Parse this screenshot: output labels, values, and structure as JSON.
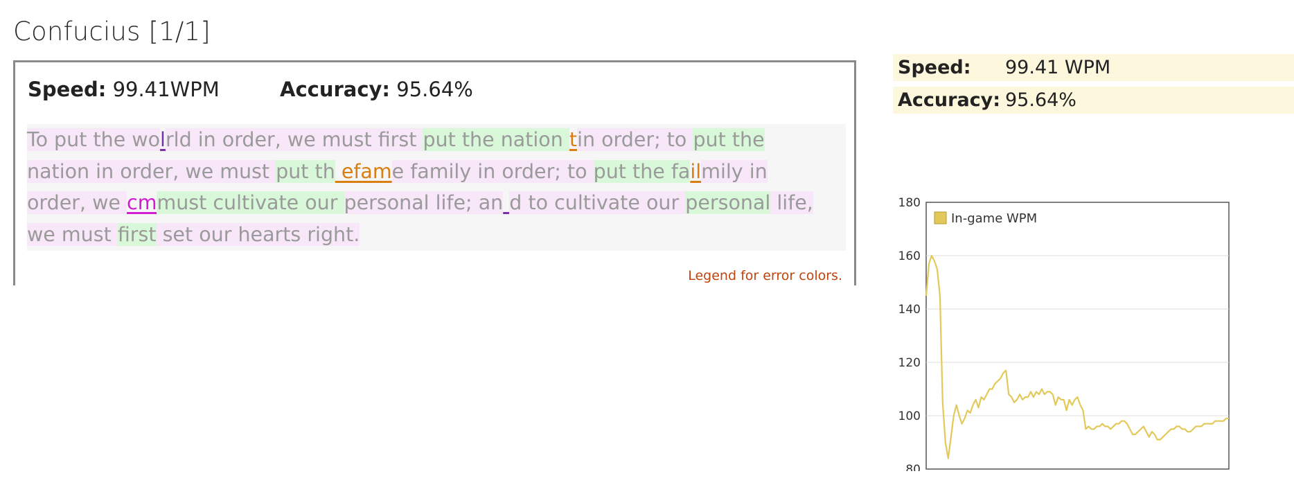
{
  "page_title": "Confucius [1/1]",
  "result": {
    "speed_label": "Speed:",
    "speed_value": "99.41WPM",
    "accuracy_label": "Accuracy:",
    "accuracy_value": "95.64%"
  },
  "passage_lines": [
    [
      {
        "t": "To put the ",
        "c": "p"
      },
      {
        "t": "wo",
        "c": "p"
      },
      {
        "t": "l",
        "c": "e-purple"
      },
      {
        "t": "rld in order, we must first ",
        "c": "p"
      },
      {
        "t": "put the nation ",
        "c": "g"
      },
      {
        "t": "t",
        "c": "e-orange"
      },
      {
        "t": "in order; to ",
        "c": "p"
      },
      {
        "t": "put the",
        "c": "g"
      }
    ],
    [
      {
        "t": "nation in order, we must ",
        "c": "p"
      },
      {
        "t": "put th",
        "c": "g"
      },
      {
        "t": " efam",
        "c": "e-orange"
      },
      {
        "t": "e family in order; to ",
        "c": "p"
      },
      {
        "t": "put the fa",
        "c": "g"
      },
      {
        "t": "il",
        "c": "e-orange"
      },
      {
        "t": "mily in",
        "c": "p"
      }
    ],
    [
      {
        "t": "order, we ",
        "c": "p"
      },
      {
        "t": "cm",
        "c": "e-magenta"
      },
      {
        "t": "must cultivate our ",
        "c": "g"
      },
      {
        "t": "personal life; an",
        "c": "p"
      },
      {
        "t": " ",
        "c": "e-purple"
      },
      {
        "t": "d to cultivate our ",
        "c": "p"
      },
      {
        "t": "personal",
        "c": "g"
      },
      {
        "t": " life,",
        "c": "p"
      }
    ],
    [
      {
        "t": "we must ",
        "c": "p"
      },
      {
        "t": "first",
        "c": "g"
      },
      {
        "t": " set our hearts right.",
        "c": "p"
      }
    ]
  ],
  "legend_link": "Legend for error colors.",
  "side_stats": [
    {
      "label": "Speed:",
      "value": "99.41 WPM"
    },
    {
      "label": "Accuracy:",
      "value": "95.64%"
    }
  ],
  "chart_data": {
    "type": "line",
    "series": [
      {
        "name": "In-game WPM",
        "color": "#e3c95a",
        "values": [
          145,
          157,
          160,
          158,
          155,
          145,
          105,
          90,
          84,
          92,
          100,
          104,
          100,
          97,
          99,
          102,
          101,
          104,
          106,
          103,
          107,
          106,
          108,
          110,
          110,
          112,
          113,
          114,
          116,
          117,
          108,
          107,
          105,
          106,
          108,
          106,
          107,
          107,
          109,
          107,
          109,
          108,
          110,
          108,
          109,
          109,
          108,
          104,
          107,
          106,
          106,
          102,
          106,
          104,
          106,
          107,
          104,
          102,
          95,
          96,
          95,
          95,
          96,
          96,
          97,
          96,
          96,
          95,
          96,
          97,
          97,
          98,
          98,
          97,
          95,
          93,
          93,
          94,
          95,
          96,
          94,
          92,
          94,
          93,
          91,
          91,
          92,
          93,
          94,
          95,
          95,
          96,
          96,
          95,
          95,
          94,
          94,
          95,
          96,
          96,
          96,
          97,
          97,
          97,
          97,
          98,
          98,
          98,
          98,
          99,
          99
        ]
      }
    ],
    "ylim": [
      80,
      180
    ],
    "yticks": [
      80,
      100,
      120,
      140,
      160,
      180
    ],
    "grid": true,
    "legend": "top-left"
  }
}
